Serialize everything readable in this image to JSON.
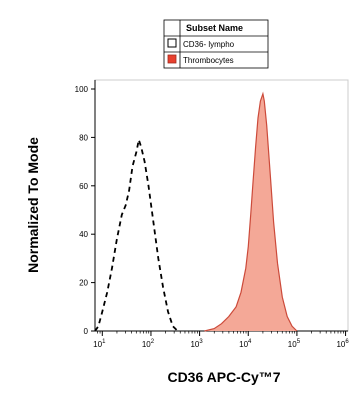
{
  "chart_data": {
    "type": "area",
    "ylabel": "Normalized To Mode",
    "xlabel": "CD36 APC-Cy™7",
    "xscale": "log",
    "xlim_decades": [
      0.85,
      6.05
    ],
    "ylim": [
      0,
      100
    ],
    "y_ticks": [
      "0",
      "20",
      "40",
      "60",
      "80",
      "100"
    ],
    "x_ticks": [
      {
        "base": "10",
        "exp": "1",
        "decade": 1
      },
      {
        "base": "10",
        "exp": "2",
        "decade": 2
      },
      {
        "base": "10",
        "exp": "3",
        "decade": 3
      },
      {
        "base": "10",
        "exp": "4",
        "decade": 4
      },
      {
        "base": "10",
        "exp": "5",
        "decade": 5
      },
      {
        "base": "10",
        "exp": "6",
        "decade": 6
      }
    ],
    "legend": {
      "title": "Subset Name",
      "placement": "top-right",
      "entries": [
        "CD36- lympho",
        "Thrombocytes"
      ]
    },
    "series": [
      {
        "name": "CD36- lympho",
        "style": "dashed",
        "color": "#000000",
        "fill": "none",
        "points": [
          [
            0.85,
            0
          ],
          [
            0.92,
            2
          ],
          [
            1.0,
            8
          ],
          [
            1.1,
            16
          ],
          [
            1.2,
            26
          ],
          [
            1.3,
            38
          ],
          [
            1.4,
            48
          ],
          [
            1.48,
            52
          ],
          [
            1.55,
            58
          ],
          [
            1.62,
            68
          ],
          [
            1.7,
            74
          ],
          [
            1.75,
            79
          ],
          [
            1.8,
            76
          ],
          [
            1.87,
            70
          ],
          [
            1.95,
            60
          ],
          [
            2.05,
            45
          ],
          [
            2.15,
            30
          ],
          [
            2.25,
            18
          ],
          [
            2.35,
            8
          ],
          [
            2.45,
            2
          ],
          [
            2.55,
            0
          ]
        ]
      },
      {
        "name": "Thrombocytes",
        "style": "solid",
        "color": "#cc4a3a",
        "fill": "#f4a897",
        "points": [
          [
            3.1,
            0
          ],
          [
            3.3,
            1
          ],
          [
            3.45,
            3
          ],
          [
            3.6,
            6
          ],
          [
            3.75,
            10
          ],
          [
            3.85,
            16
          ],
          [
            3.95,
            26
          ],
          [
            4.0,
            35
          ],
          [
            4.05,
            48
          ],
          [
            4.1,
            62
          ],
          [
            4.15,
            76
          ],
          [
            4.2,
            88
          ],
          [
            4.25,
            95
          ],
          [
            4.3,
            98
          ],
          [
            4.33,
            95
          ],
          [
            4.38,
            85
          ],
          [
            4.45,
            65
          ],
          [
            4.52,
            45
          ],
          [
            4.6,
            28
          ],
          [
            4.7,
            14
          ],
          [
            4.8,
            6
          ],
          [
            4.9,
            2
          ],
          [
            5.0,
            0
          ]
        ]
      }
    ]
  }
}
